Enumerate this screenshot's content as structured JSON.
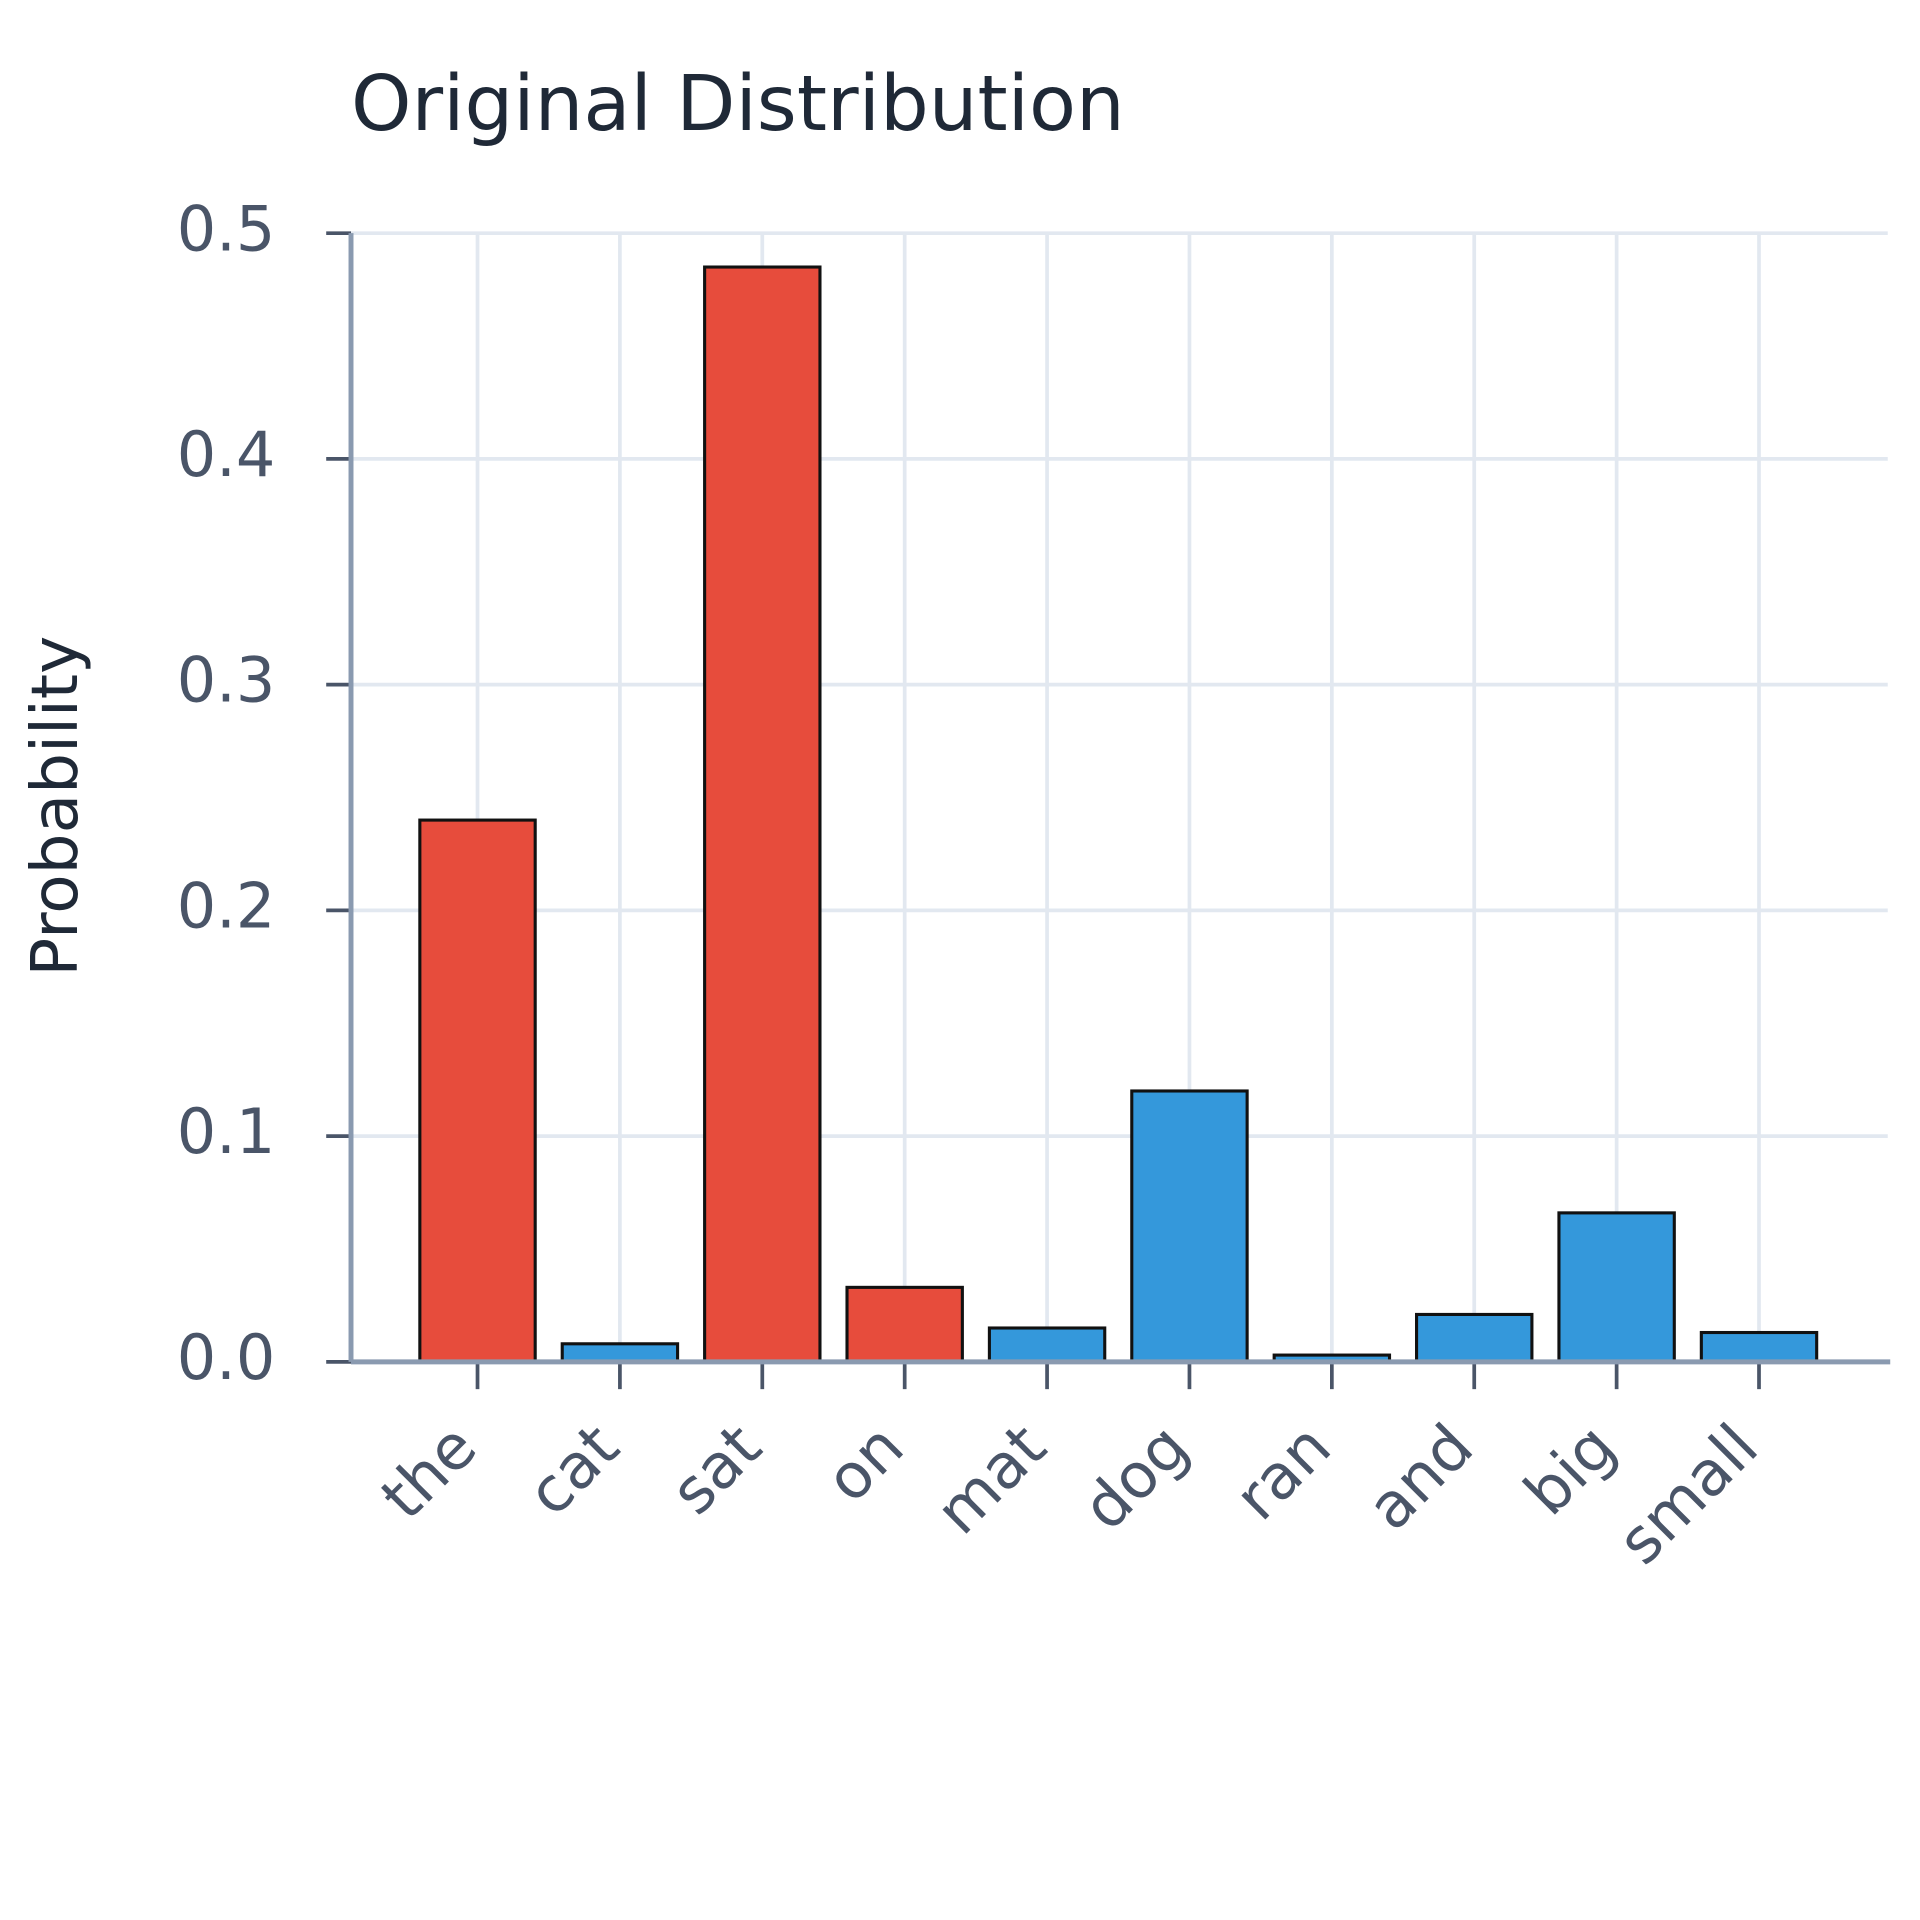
{
  "chart_data": {
    "type": "bar",
    "title": "Original Distribution",
    "y_label": "Probability",
    "categories": [
      "the",
      "cat",
      "sat",
      "on",
      "mat",
      "dog",
      "ran",
      "and",
      "big",
      "small"
    ],
    "values": [
      0.24,
      0.008,
      0.485,
      0.033,
      0.015,
      0.12,
      0.003,
      0.021,
      0.066,
      0.013
    ],
    "colors": [
      "#e74c3c",
      "#3498db",
      "#e74c3c",
      "#e74c3c",
      "#3498db",
      "#3498db",
      "#3498db",
      "#3498db",
      "#3498db",
      "#3498db"
    ],
    "ylim": [
      0,
      0.5
    ],
    "yticks": [
      {
        "value": 0,
        "label": "0.0"
      },
      0.1,
      0.2,
      0.3,
      0.4,
      0.5
    ],
    "grid": true
  }
}
